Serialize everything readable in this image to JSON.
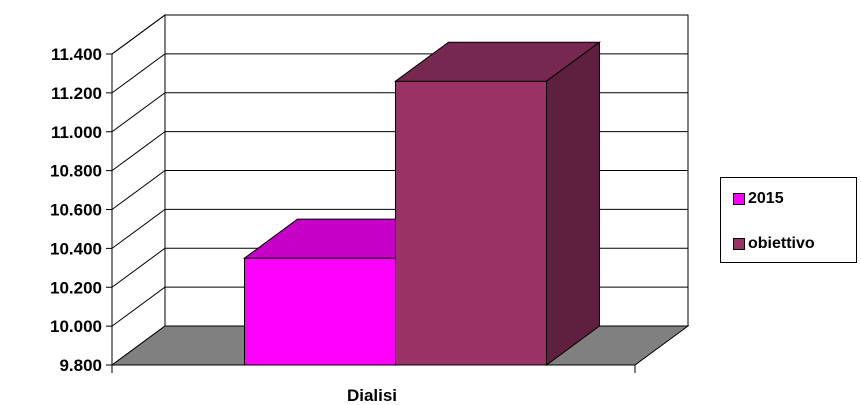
{
  "chart_data": {
    "type": "bar",
    "style": "3d-clustered",
    "categories": [
      "Dialisi"
    ],
    "series": [
      {
        "name": "2015",
        "values": [
          10.35
        ],
        "color": "#ff00ff"
      },
      {
        "name": "obiettivo",
        "values": [
          11.26
        ],
        "color": "#993366"
      }
    ],
    "yticks": [
      "9.800",
      "10.000",
      "10.200",
      "10.400",
      "10.600",
      "10.800",
      "11.000",
      "11.200",
      "11.400"
    ],
    "ylim": [
      9.8,
      11.4
    ],
    "ystep": 0.2,
    "grid": true,
    "legend_position": "right",
    "floor_color": "#808080"
  }
}
